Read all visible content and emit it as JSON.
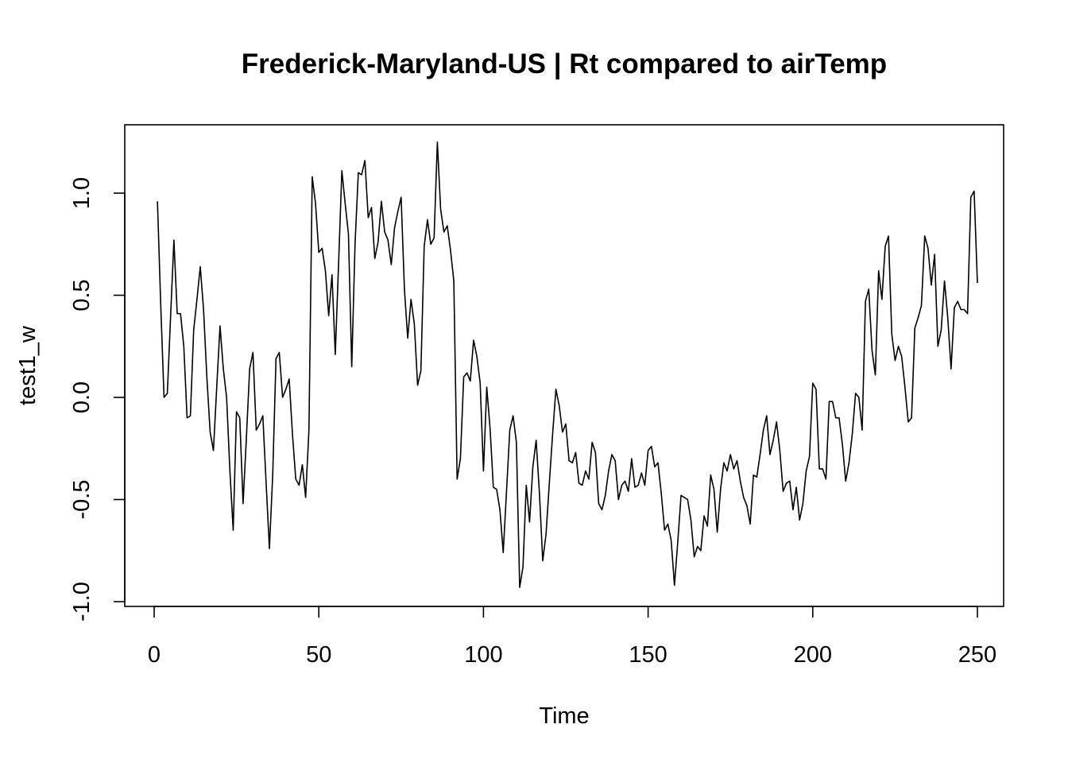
{
  "chart_data": {
    "type": "line",
    "title": "Frederick-Maryland-US | Rt compared to airTemp",
    "xlabel": "Time",
    "ylabel": "test1_w",
    "xlim": [
      1,
      248
    ],
    "ylim": [
      -1.0,
      1.25
    ],
    "x_ticks": [
      0,
      50,
      100,
      150,
      200,
      250
    ],
    "x_tick_labels": [
      "0",
      "50",
      "100",
      "150",
      "200",
      "250"
    ],
    "y_ticks": [
      -1.0,
      -0.5,
      0.0,
      0.5,
      1.0
    ],
    "y_tick_labels": [
      "-1.0",
      "-0.5",
      "0.0",
      "0.5",
      "1.0"
    ],
    "grid": false,
    "line_color": "#000000",
    "series": [
      {
        "x_start": 1,
        "x_step": 1,
        "values": [
          0.96,
          0.45,
          0.0,
          0.02,
          0.4,
          0.77,
          0.41,
          0.41,
          0.25,
          -0.1,
          -0.09,
          0.33,
          0.48,
          0.64,
          0.43,
          0.1,
          -0.17,
          -0.26,
          0.05,
          0.35,
          0.14,
          0.0,
          -0.36,
          -0.65,
          -0.07,
          -0.1,
          -0.52,
          -0.2,
          0.14,
          0.22,
          -0.16,
          -0.13,
          -0.09,
          -0.42,
          -0.74,
          -0.38,
          0.19,
          0.22,
          0.0,
          0.04,
          0.09,
          -0.18,
          -0.4,
          -0.43,
          -0.33,
          -0.49,
          -0.16,
          1.08,
          0.95,
          0.71,
          0.73,
          0.62,
          0.4,
          0.6,
          0.21,
          0.65,
          1.11,
          0.95,
          0.8,
          0.15,
          0.75,
          1.1,
          1.09,
          1.16,
          0.88,
          0.93,
          0.68,
          0.76,
          0.96,
          0.81,
          0.77,
          0.65,
          0.83,
          0.91,
          0.98,
          0.53,
          0.29,
          0.48,
          0.36,
          0.06,
          0.13,
          0.74,
          0.87,
          0.75,
          0.78,
          1.25,
          0.92,
          0.81,
          0.84,
          0.72,
          0.57,
          -0.4,
          -0.3,
          0.1,
          0.12,
          0.08,
          0.28,
          0.2,
          0.07,
          -0.36,
          0.05,
          -0.15,
          -0.44,
          -0.45,
          -0.55,
          -0.76,
          -0.46,
          -0.16,
          -0.09,
          -0.22,
          -0.93,
          -0.83,
          -0.43,
          -0.61,
          -0.34,
          -0.21,
          -0.47,
          -0.8,
          -0.67,
          -0.42,
          -0.18,
          0.04,
          -0.04,
          -0.17,
          -0.13,
          -0.31,
          -0.32,
          -0.27,
          -0.42,
          -0.43,
          -0.36,
          -0.4,
          -0.22,
          -0.27,
          -0.52,
          -0.55,
          -0.48,
          -0.36,
          -0.28,
          -0.31,
          -0.5,
          -0.43,
          -0.41,
          -0.46,
          -0.3,
          -0.44,
          -0.43,
          -0.37,
          -0.43,
          -0.26,
          -0.24,
          -0.34,
          -0.32,
          -0.47,
          -0.65,
          -0.62,
          -0.7,
          -0.92,
          -0.71,
          -0.48,
          -0.49,
          -0.5,
          -0.6,
          -0.78,
          -0.73,
          -0.75,
          -0.58,
          -0.63,
          -0.38,
          -0.45,
          -0.66,
          -0.45,
          -0.32,
          -0.36,
          -0.28,
          -0.35,
          -0.31,
          -0.41,
          -0.49,
          -0.53,
          -0.62,
          -0.38,
          -0.39,
          -0.28,
          -0.16,
          -0.09,
          -0.28,
          -0.21,
          -0.12,
          -0.26,
          -0.46,
          -0.42,
          -0.41,
          -0.55,
          -0.44,
          -0.6,
          -0.52,
          -0.36,
          -0.29,
          0.07,
          0.04,
          -0.35,
          -0.35,
          -0.4,
          -0.02,
          -0.02,
          -0.1,
          -0.1,
          -0.23,
          -0.41,
          -0.32,
          -0.18,
          0.02,
          0.0,
          -0.16,
          0.47,
          0.53,
          0.23,
          0.11,
          0.62,
          0.48,
          0.74,
          0.79,
          0.31,
          0.18,
          0.25,
          0.2,
          0.05,
          -0.12,
          -0.1,
          0.34,
          0.39,
          0.45,
          0.79,
          0.73,
          0.55,
          0.7,
          0.25,
          0.33,
          0.57,
          0.39,
          0.14,
          0.44,
          0.47,
          0.43,
          0.43,
          0.41,
          0.98,
          1.01,
          0.56
        ]
      }
    ]
  }
}
